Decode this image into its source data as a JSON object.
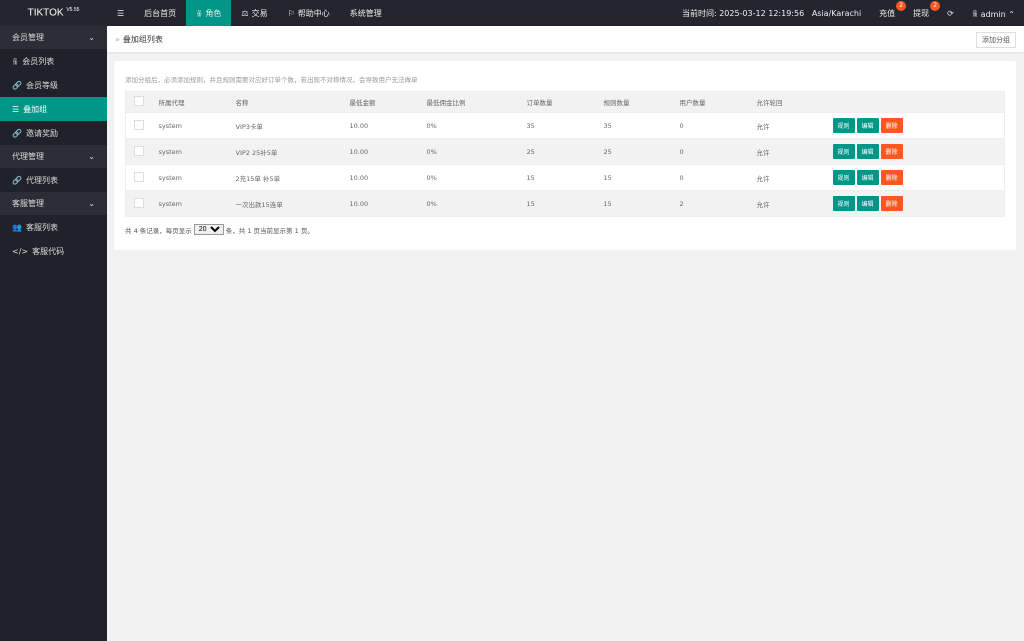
{
  "app": {
    "name": "TIKTOK",
    "version": "V5.55"
  },
  "nav": [
    {
      "label": "后台首页"
    },
    {
      "label": "角色",
      "active": true
    },
    {
      "label": "交易"
    },
    {
      "label": "帮助中心"
    },
    {
      "label": "系统管理"
    }
  ],
  "header": {
    "time": "当前时间: 2025-03-12 12:19:56",
    "tz": "Asia/Karachi",
    "recharge": "充值",
    "recharge_badge": "2",
    "withdraw": "提现",
    "withdraw_badge": "2",
    "user": "admin"
  },
  "sidebar": {
    "g1": "会员管理",
    "i1": "会员列表",
    "i2": "会员等级",
    "i3": "叠加组",
    "i4": "邀请奖励",
    "g2": "代理管理",
    "i5": "代理列表",
    "g3": "客服管理",
    "i6": "客服列表",
    "i7": "客服代码"
  },
  "breadcrumb": "叠加组列表",
  "add_button": "添加分组",
  "tip": "添加分组后，必须添加规则，并且规则需要对应好订单个数，若出现不对称情况，会导致用户无法做单",
  "columns": [
    "所属代理",
    "名称",
    "最低金额",
    "最低佣金比例",
    "订单数量",
    "规则数量",
    "用户数量",
    "允许轮回"
  ],
  "rows": [
    [
      "system",
      "VIP3卡单",
      "10.00",
      "0%",
      "35",
      "35",
      "0",
      "允许"
    ],
    [
      "system",
      "VIP2 25补5单",
      "10.00",
      "0%",
      "25",
      "25",
      "0",
      "允许"
    ],
    [
      "system",
      "2充15单 补5单",
      "10.00",
      "0%",
      "15",
      "15",
      "0",
      "允许"
    ],
    [
      "system",
      "一次出款15连单",
      "10.00",
      "0%",
      "15",
      "15",
      "2",
      "允许"
    ]
  ],
  "actions": {
    "rule": "规则",
    "edit": "编辑",
    "delete": "删除"
  },
  "pager": {
    "pre": "共 4 条记录，每页显示",
    "per_page": "20",
    "post": "条，共 1 页当前显示第 1 页。"
  },
  "colors": {
    "accent": "#009688",
    "danger": "#ff5722",
    "topbar": "#23262e"
  }
}
